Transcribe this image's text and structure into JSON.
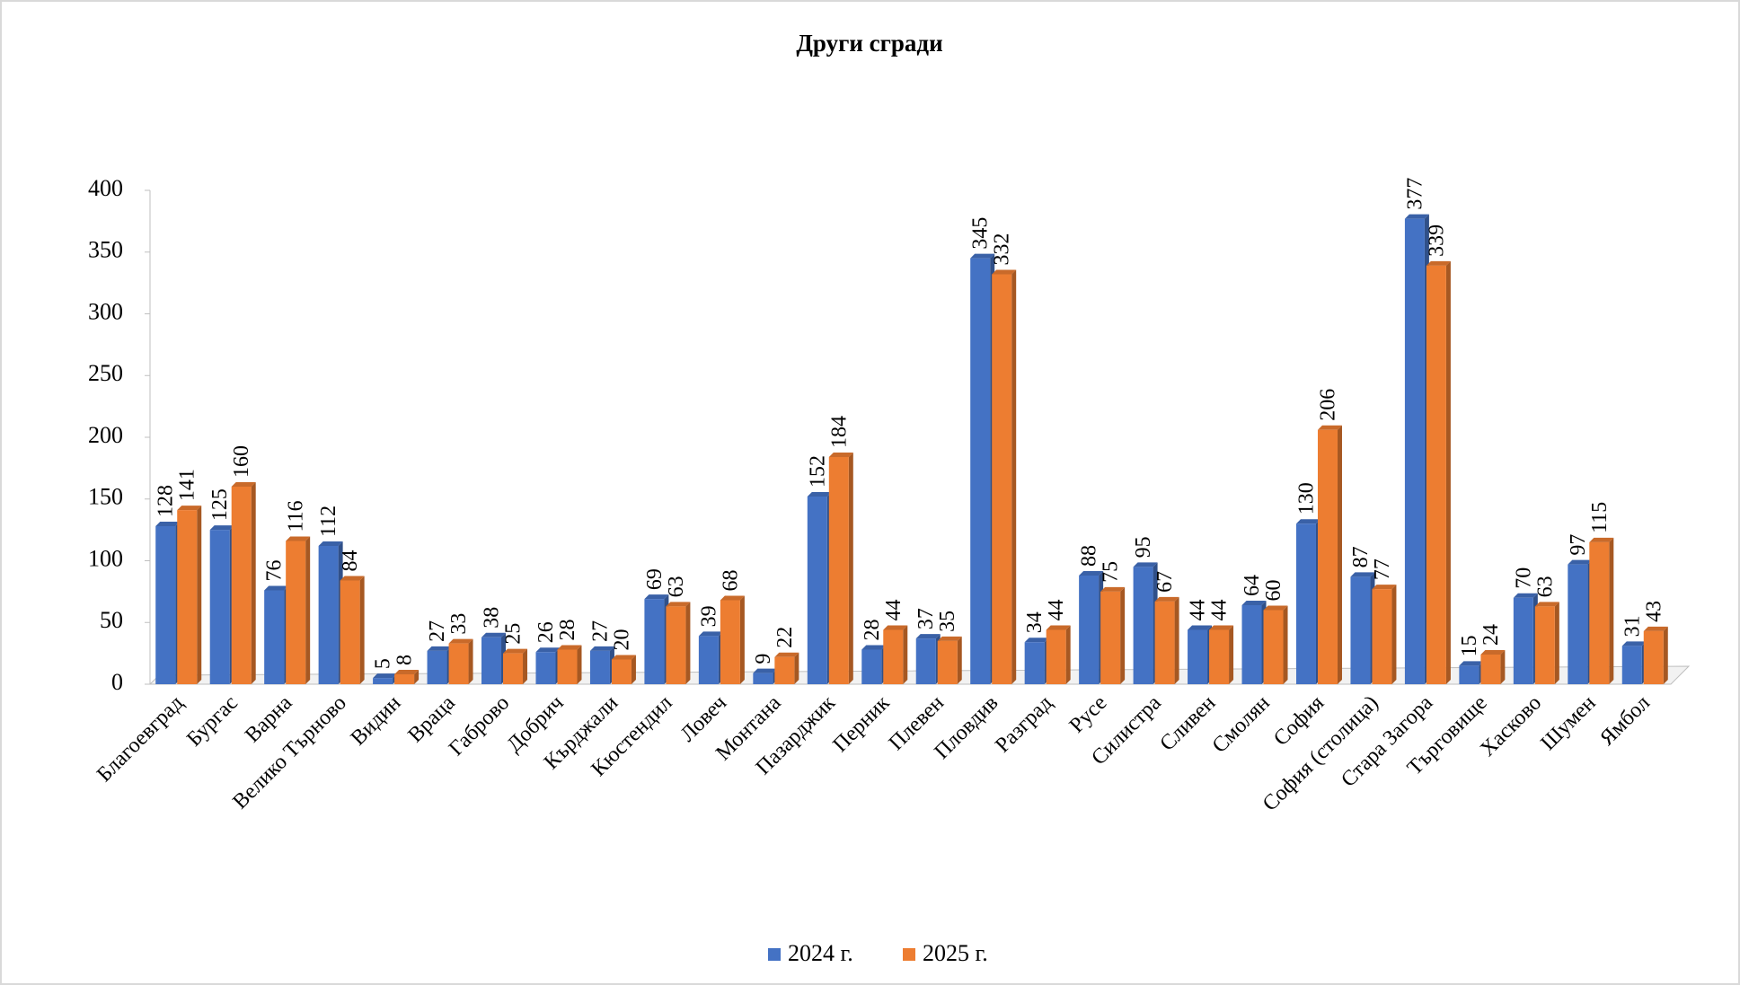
{
  "chart_data": {
    "type": "bar",
    "title": "Други сгради",
    "categories": [
      "Благоевград",
      "Бургас",
      "Варна",
      "Велико Търново",
      "Видин",
      "Враца",
      "Габрово",
      "Добрич",
      "Кърджали",
      "Кюстендил",
      "Ловеч",
      "Монтана",
      "Пазарджик",
      "Перник",
      "Плевен",
      "Пловдив",
      "Разград",
      "Русе",
      "Силистра",
      "Сливен",
      "Смолян",
      "София",
      "София (столица)",
      "Стара Загора",
      "Търговище",
      "Хасково",
      "Шумен",
      "Ямбол"
    ],
    "series": [
      {
        "name": "2024 г.",
        "color": "#4472c4",
        "values": [
          128,
          125,
          76,
          112,
          5,
          27,
          38,
          26,
          27,
          69,
          39,
          9,
          152,
          28,
          37,
          345,
          34,
          88,
          95,
          44,
          64,
          130,
          87,
          377,
          15,
          70,
          97,
          31
        ]
      },
      {
        "name": "2025 г.",
        "color": "#ed7d31",
        "values": [
          141,
          160,
          116,
          84,
          8,
          33,
          25,
          28,
          20,
          63,
          68,
          22,
          184,
          44,
          35,
          332,
          44,
          75,
          67,
          44,
          60,
          206,
          77,
          339,
          24,
          63,
          115,
          43
        ]
      }
    ],
    "ylim": [
      0,
      400
    ],
    "yticks": [
      0,
      50,
      100,
      150,
      200,
      250,
      300,
      350,
      400
    ],
    "legend": "bottom"
  }
}
